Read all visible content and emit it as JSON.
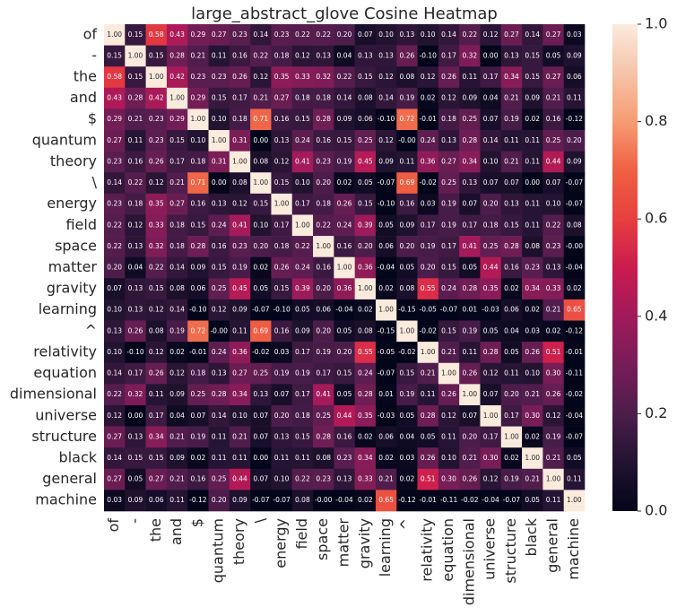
{
  "chart_data": {
    "type": "heatmap",
    "title": "large_abstract_glove Cosine Heatmap",
    "categories": [
      "of",
      "-",
      "the",
      "and",
      "$",
      "quantum",
      "theory",
      "\\",
      "energy",
      "field",
      "space",
      "matter",
      "gravity",
      "learning",
      "^",
      "relativity",
      "equation",
      "dimensional",
      "universe",
      "structure",
      "black",
      "general",
      "machine"
    ],
    "values": [
      [
        1.0,
        0.15,
        0.58,
        0.43,
        0.29,
        0.27,
        0.23,
        0.14,
        0.23,
        0.22,
        0.22,
        0.2,
        0.07,
        0.1,
        0.13,
        0.1,
        0.14,
        0.22,
        0.12,
        0.27,
        0.14,
        0.27,
        0.03
      ],
      [
        0.15,
        1.0,
        0.15,
        0.28,
        0.21,
        0.11,
        0.16,
        0.22,
        0.18,
        0.12,
        0.13,
        0.04,
        0.13,
        0.13,
        0.26,
        -0.1,
        0.17,
        0.32,
        0.0,
        0.13,
        0.15,
        0.05,
        0.09
      ],
      [
        0.58,
        0.15,
        1.0,
        0.42,
        0.23,
        0.23,
        0.26,
        0.12,
        0.35,
        0.33,
        0.32,
        0.22,
        0.15,
        0.12,
        0.08,
        0.12,
        0.26,
        0.11,
        0.17,
        0.34,
        0.15,
        0.27,
        0.06
      ],
      [
        0.43,
        0.28,
        0.42,
        1.0,
        0.29,
        0.15,
        0.17,
        0.21,
        0.27,
        0.18,
        0.18,
        0.14,
        0.08,
        0.14,
        0.19,
        0.02,
        0.12,
        0.09,
        0.04,
        0.21,
        0.09,
        0.21,
        0.11
      ],
      [
        0.29,
        0.21,
        0.23,
        0.29,
        1.0,
        0.1,
        0.18,
        0.71,
        0.16,
        0.15,
        0.28,
        0.09,
        0.06,
        -0.1,
        0.72,
        -0.01,
        0.18,
        0.25,
        0.07,
        0.19,
        0.02,
        0.16,
        -0.12
      ],
      [
        0.27,
        0.11,
        0.23,
        0.15,
        0.1,
        1.0,
        0.31,
        0.0,
        0.13,
        0.24,
        0.16,
        0.15,
        0.25,
        0.12,
        -0.0,
        0.24,
        0.13,
        0.28,
        0.14,
        0.11,
        0.11,
        0.25,
        0.2
      ],
      [
        0.23,
        0.16,
        0.26,
        0.17,
        0.18,
        0.31,
        1.0,
        0.08,
        0.12,
        0.41,
        0.23,
        0.19,
        0.45,
        0.09,
        0.11,
        0.36,
        0.27,
        0.34,
        0.1,
        0.21,
        0.11,
        0.44,
        0.09
      ],
      [
        0.14,
        0.22,
        0.12,
        0.21,
        0.71,
        0.0,
        0.08,
        1.0,
        0.15,
        0.1,
        0.2,
        0.02,
        0.05,
        -0.07,
        0.69,
        -0.02,
        0.25,
        0.13,
        0.07,
        0.07,
        0.0,
        0.07,
        -0.07
      ],
      [
        0.23,
        0.18,
        0.35,
        0.27,
        0.16,
        0.13,
        0.12,
        0.15,
        1.0,
        0.17,
        0.18,
        0.26,
        0.15,
        -0.1,
        0.16,
        0.03,
        0.19,
        0.07,
        0.2,
        0.13,
        0.11,
        0.1,
        -0.07
      ],
      [
        0.22,
        0.12,
        0.33,
        0.18,
        0.15,
        0.24,
        0.41,
        0.1,
        0.17,
        1.0,
        0.22,
        0.24,
        0.39,
        0.05,
        0.09,
        0.17,
        0.19,
        0.17,
        0.18,
        0.15,
        0.11,
        0.22,
        0.08
      ],
      [
        0.22,
        0.13,
        0.32,
        0.18,
        0.28,
        0.16,
        0.23,
        0.2,
        0.18,
        0.22,
        1.0,
        0.16,
        0.2,
        0.06,
        0.2,
        0.19,
        0.17,
        0.41,
        0.25,
        0.28,
        0.08,
        0.23,
        -0.0
      ],
      [
        0.2,
        0.04,
        0.22,
        0.14,
        0.09,
        0.15,
        0.19,
        0.02,
        0.26,
        0.24,
        0.16,
        1.0,
        0.36,
        -0.04,
        0.05,
        0.2,
        0.15,
        0.05,
        0.44,
        0.16,
        0.23,
        0.13,
        -0.04
      ],
      [
        0.07,
        0.13,
        0.15,
        0.08,
        0.06,
        0.25,
        0.45,
        0.05,
        0.15,
        0.39,
        0.2,
        0.36,
        1.0,
        0.02,
        0.08,
        0.55,
        0.24,
        0.28,
        0.35,
        0.02,
        0.34,
        0.33,
        0.02
      ],
      [
        0.1,
        0.13,
        0.12,
        0.14,
        -0.1,
        0.12,
        0.09,
        -0.07,
        -0.1,
        0.05,
        0.06,
        -0.04,
        0.02,
        1.0,
        -0.15,
        -0.05,
        -0.07,
        0.01,
        -0.03,
        0.06,
        0.02,
        0.21,
        0.65
      ],
      [
        0.13,
        0.26,
        0.08,
        0.19,
        0.72,
        -0.0,
        0.11,
        0.69,
        0.16,
        0.09,
        0.2,
        0.05,
        0.08,
        -0.15,
        1.0,
        -0.02,
        0.15,
        0.19,
        0.05,
        0.04,
        0.03,
        0.02,
        -0.12
      ],
      [
        0.1,
        -0.1,
        0.12,
        0.02,
        -0.01,
        0.24,
        0.36,
        -0.02,
        0.03,
        0.17,
        0.19,
        0.2,
        0.55,
        -0.05,
        -0.02,
        1.0,
        0.21,
        0.11,
        0.28,
        0.05,
        0.26,
        0.51,
        -0.01
      ],
      [
        0.14,
        0.17,
        0.26,
        0.12,
        0.18,
        0.13,
        0.27,
        0.25,
        0.19,
        0.19,
        0.17,
        0.15,
        0.24,
        -0.07,
        0.15,
        0.21,
        1.0,
        0.26,
        0.12,
        0.11,
        0.1,
        0.3,
        -0.11
      ],
      [
        0.22,
        0.32,
        0.11,
        0.09,
        0.25,
        0.28,
        0.34,
        0.13,
        0.07,
        0.17,
        0.41,
        0.05,
        0.28,
        0.01,
        0.19,
        0.11,
        0.26,
        1.0,
        0.07,
        0.2,
        0.21,
        0.26,
        -0.02
      ],
      [
        0.12,
        0.0,
        0.17,
        0.04,
        0.07,
        0.14,
        0.1,
        0.07,
        0.2,
        0.18,
        0.25,
        0.44,
        0.35,
        -0.03,
        0.05,
        0.28,
        0.12,
        0.07,
        1.0,
        0.17,
        0.3,
        0.12,
        -0.04
      ],
      [
        0.27,
        0.13,
        0.34,
        0.21,
        0.19,
        0.11,
        0.21,
        0.07,
        0.13,
        0.15,
        0.28,
        0.16,
        0.02,
        0.06,
        0.04,
        0.05,
        0.11,
        0.2,
        0.17,
        1.0,
        0.02,
        0.19,
        -0.07
      ],
      [
        0.14,
        0.15,
        0.15,
        0.09,
        0.02,
        0.11,
        0.11,
        0.0,
        0.11,
        0.11,
        0.08,
        0.23,
        0.34,
        0.02,
        0.03,
        0.26,
        0.1,
        0.21,
        0.3,
        0.02,
        1.0,
        0.21,
        0.05
      ],
      [
        0.27,
        0.05,
        0.27,
        0.21,
        0.16,
        0.25,
        0.44,
        0.07,
        0.1,
        0.22,
        0.23,
        0.13,
        0.33,
        0.21,
        0.02,
        0.51,
        0.3,
        0.26,
        0.12,
        0.19,
        0.21,
        1.0,
        0.11
      ],
      [
        0.03,
        0.09,
        0.06,
        0.11,
        -0.12,
        0.2,
        0.09,
        -0.07,
        -0.07,
        0.08,
        -0.0,
        -0.04,
        0.02,
        0.65,
        -0.12,
        -0.01,
        -0.11,
        -0.02,
        -0.04,
        -0.07,
        0.05,
        0.11,
        1.0
      ]
    ],
    "value_labels": [
      [
        "1.00",
        "0.15",
        "0.58",
        "0.43",
        "0.29",
        "0.27",
        "0.23",
        "0.14",
        "0.23",
        "0.22",
        "0.22",
        "0.20",
        "0.07",
        "0.10",
        "0.13",
        "0.10",
        "0.14",
        "0.22",
        "0.12",
        "0.27",
        "0.14",
        "0.27",
        "0.03"
      ],
      [
        "0.15",
        "1.00",
        "0.15",
        "0.28",
        "0.21",
        "0.11",
        "0.16",
        "0.22",
        "0.18",
        "0.12",
        "0.13",
        "0.04",
        "0.13",
        "0.13",
        "0.26",
        "-0.10",
        "0.17",
        "0.32",
        "0.00",
        "0.13",
        "0.15",
        "0.05",
        "0.09"
      ],
      [
        "0.58",
        "0.15",
        "1.00",
        "0.42",
        "0.23",
        "0.23",
        "0.26",
        "0.12",
        "0.35",
        "0.33",
        "0.32",
        "0.22",
        "0.15",
        "0.12",
        "0.08",
        "0.12",
        "0.26",
        "0.11",
        "0.17",
        "0.34",
        "0.15",
        "0.27",
        "0.06"
      ],
      [
        "0.43",
        "0.28",
        "0.42",
        "1.00",
        "0.29",
        "0.15",
        "0.17",
        "0.21",
        "0.27",
        "0.18",
        "0.18",
        "0.14",
        "0.08",
        "0.14",
        "0.19",
        "0.02",
        "0.12",
        "0.09",
        "0.04",
        "0.21",
        "0.09",
        "0.21",
        "0.11"
      ],
      [
        "0.29",
        "0.21",
        "0.23",
        "0.29",
        "1.00",
        "0.10",
        "0.18",
        "0.71",
        "0.16",
        "0.15",
        "0.28",
        "0.09",
        "0.06",
        "-0.10",
        "0.72",
        "-0.01",
        "0.18",
        "0.25",
        "0.07",
        "0.19",
        "0.02",
        "0.16",
        "-0.12"
      ],
      [
        "0.27",
        "0.11",
        "0.23",
        "0.15",
        "0.10",
        "1.00",
        "0.31",
        "0.00",
        "0.13",
        "0.24",
        "0.16",
        "0.15",
        "0.25",
        "0.12",
        "-0.00",
        "0.24",
        "0.13",
        "0.28",
        "0.14",
        "0.11",
        "0.11",
        "0.25",
        "0.20"
      ],
      [
        "0.23",
        "0.16",
        "0.26",
        "0.17",
        "0.18",
        "0.31",
        "1.00",
        "0.08",
        "0.12",
        "0.41",
        "0.23",
        "0.19",
        "0.45",
        "0.09",
        "0.11",
        "0.36",
        "0.27",
        "0.34",
        "0.10",
        "0.21",
        "0.11",
        "0.44",
        "0.09"
      ],
      [
        "0.14",
        "0.22",
        "0.12",
        "0.21",
        "0.71",
        "0.00",
        "0.08",
        "1.00",
        "0.15",
        "0.10",
        "0.20",
        "0.02",
        "0.05",
        "-0.07",
        "0.69",
        "-0.02",
        "0.25",
        "0.13",
        "0.07",
        "0.07",
        "0.00",
        "0.07",
        "-0.07"
      ],
      [
        "0.23",
        "0.18",
        "0.35",
        "0.27",
        "0.16",
        "0.13",
        "0.12",
        "0.15",
        "1.00",
        "0.17",
        "0.18",
        "0.26",
        "0.15",
        "-0.10",
        "0.16",
        "0.03",
        "0.19",
        "0.07",
        "0.20",
        "0.13",
        "0.11",
        "0.10",
        "-0.07"
      ],
      [
        "0.22",
        "0.12",
        "0.33",
        "0.18",
        "0.15",
        "0.24",
        "0.41",
        "0.10",
        "0.17",
        "1.00",
        "0.22",
        "0.24",
        "0.39",
        "0.05",
        "0.09",
        "0.17",
        "0.19",
        "0.17",
        "0.18",
        "0.15",
        "0.11",
        "0.22",
        "0.08"
      ],
      [
        "0.22",
        "0.13",
        "0.32",
        "0.18",
        "0.28",
        "0.16",
        "0.23",
        "0.20",
        "0.18",
        "0.22",
        "1.00",
        "0.16",
        "0.20",
        "0.06",
        "0.20",
        "0.19",
        "0.17",
        "0.41",
        "0.25",
        "0.28",
        "0.08",
        "0.23",
        "-0.00"
      ],
      [
        "0.20",
        "0.04",
        "0.22",
        "0.14",
        "0.09",
        "0.15",
        "0.19",
        "0.02",
        "0.26",
        "0.24",
        "0.16",
        "1.00",
        "0.36",
        "-0.04",
        "0.05",
        "0.20",
        "0.15",
        "0.05",
        "0.44",
        "0.16",
        "0.23",
        "0.13",
        "-0.04"
      ],
      [
        "0.07",
        "0.13",
        "0.15",
        "0.08",
        "0.06",
        "0.25",
        "0.45",
        "0.05",
        "0.15",
        "0.39",
        "0.20",
        "0.36",
        "1.00",
        "0.02",
        "0.08",
        "0.55",
        "0.24",
        "0.28",
        "0.35",
        "0.02",
        "0.34",
        "0.33",
        "0.02"
      ],
      [
        "0.10",
        "0.13",
        "0.12",
        "0.14",
        "-0.10",
        "0.12",
        "0.09",
        "-0.07",
        "-0.10",
        "0.05",
        "0.06",
        "-0.04",
        "0.02",
        "1.00",
        "-0.15",
        "-0.05",
        "-0.07",
        "0.01",
        "-0.03",
        "0.06",
        "0.02",
        "0.21",
        "0.65"
      ],
      [
        "0.13",
        "0.26",
        "0.08",
        "0.19",
        "0.72",
        "-0.00",
        "0.11",
        "0.69",
        "0.16",
        "0.09",
        "0.20",
        "0.05",
        "0.08",
        "-0.15",
        "1.00",
        "-0.02",
        "0.15",
        "0.19",
        "0.05",
        "0.04",
        "0.03",
        "0.02",
        "-0.12"
      ],
      [
        "0.10",
        "-0.10",
        "0.12",
        "0.02",
        "-0.01",
        "0.24",
        "0.36",
        "-0.02",
        "0.03",
        "0.17",
        "0.19",
        "0.20",
        "0.55",
        "-0.05",
        "-0.02",
        "1.00",
        "0.21",
        "0.11",
        "0.28",
        "0.05",
        "0.26",
        "0.51",
        "-0.01"
      ],
      [
        "0.14",
        "0.17",
        "0.26",
        "0.12",
        "0.18",
        "0.13",
        "0.27",
        "0.25",
        "0.19",
        "0.19",
        "0.17",
        "0.15",
        "0.24",
        "-0.07",
        "0.15",
        "0.21",
        "1.00",
        "0.26",
        "0.12",
        "0.11",
        "0.10",
        "0.30",
        "-0.11"
      ],
      [
        "0.22",
        "0.32",
        "0.11",
        "0.09",
        "0.25",
        "0.28",
        "0.34",
        "0.13",
        "0.07",
        "0.17",
        "0.41",
        "0.05",
        "0.28",
        "0.01",
        "0.19",
        "0.11",
        "0.26",
        "1.00",
        "0.07",
        "0.20",
        "0.21",
        "0.26",
        "-0.02"
      ],
      [
        "0.12",
        "0.00",
        "0.17",
        "0.04",
        "0.07",
        "0.14",
        "0.10",
        "0.07",
        "0.20",
        "0.18",
        "0.25",
        "0.44",
        "0.35",
        "-0.03",
        "0.05",
        "0.28",
        "0.12",
        "0.07",
        "1.00",
        "0.17",
        "0.30",
        "0.12",
        "-0.04"
      ],
      [
        "0.27",
        "0.13",
        "0.34",
        "0.21",
        "0.19",
        "0.11",
        "0.21",
        "0.07",
        "0.13",
        "0.15",
        "0.28",
        "0.16",
        "0.02",
        "0.06",
        "0.04",
        "0.05",
        "0.11",
        "0.20",
        "0.17",
        "1.00",
        "0.02",
        "0.19",
        "-0.07"
      ],
      [
        "0.14",
        "0.15",
        "0.15",
        "0.09",
        "0.02",
        "0.11",
        "0.11",
        "0.00",
        "0.11",
        "0.11",
        "0.08",
        "0.23",
        "0.34",
        "0.02",
        "0.03",
        "0.26",
        "0.10",
        "0.21",
        "0.30",
        "0.02",
        "1.00",
        "0.21",
        "0.05"
      ],
      [
        "0.27",
        "0.05",
        "0.27",
        "0.21",
        "0.16",
        "0.25",
        "0.44",
        "0.07",
        "0.10",
        "0.22",
        "0.23",
        "0.13",
        "0.33",
        "0.21",
        "0.02",
        "0.51",
        "0.30",
        "0.26",
        "0.12",
        "0.19",
        "0.21",
        "1.00",
        "0.11"
      ],
      [
        "0.03",
        "0.09",
        "0.06",
        "0.11",
        "-0.12",
        "0.20",
        "0.09",
        "-0.07",
        "-0.07",
        "0.08",
        "-0.00",
        "-0.04",
        "0.02",
        "0.65",
        "-0.12",
        "-0.01",
        "-0.11",
        "-0.02",
        "-0.04",
        "-0.07",
        "0.05",
        "0.11",
        "1.00"
      ]
    ],
    "clim": [
      0,
      1
    ],
    "colorbar_ticks": [
      {
        "value": 0,
        "label": "0.0"
      },
      {
        "value": 0.2,
        "label": "0.2"
      },
      {
        "value": 0.4,
        "label": "0.4"
      },
      {
        "value": 0.6,
        "label": "0.6"
      },
      {
        "value": 0.8,
        "label": "0.8"
      },
      {
        "value": 1,
        "label": "1.0"
      }
    ],
    "colormap": [
      "#03051a",
      "#221331",
      "#4c1d4b",
      "#771d57",
      "#a11a5b",
      "#cb1b4f",
      "#e83f3f",
      "#f06043",
      "#f69c73",
      "#f6c4a9",
      "#faebdd"
    ]
  }
}
